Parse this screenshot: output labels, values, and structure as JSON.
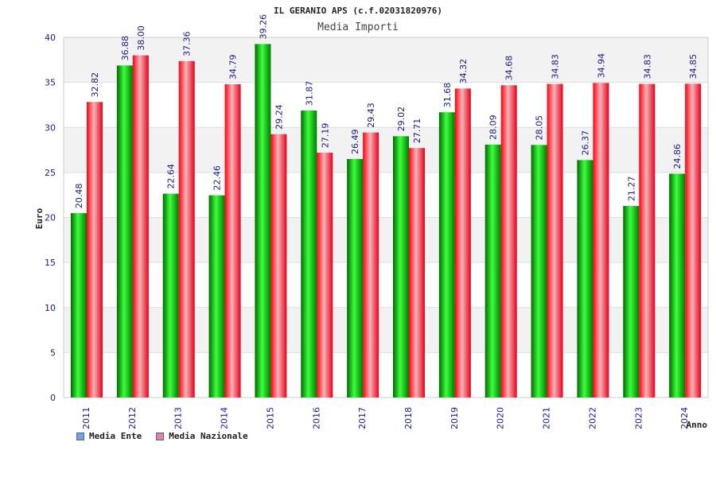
{
  "chart_data": {
    "type": "bar",
    "title": "IL GERANIO APS (c.f.02031820976)",
    "subtitle": "Media Importi",
    "xlabel": "Anno",
    "ylabel": "Euro",
    "ylim": [
      0,
      40
    ],
    "yticks": [
      0,
      5,
      10,
      15,
      20,
      25,
      30,
      35,
      40
    ],
    "categories": [
      "2011",
      "2012",
      "2013",
      "2014",
      "2015",
      "2016",
      "2017",
      "2018",
      "2019",
      "2020",
      "2021",
      "2022",
      "2023",
      "2024"
    ],
    "series": [
      {
        "name": "Media Ente",
        "color": "#00a000",
        "legend_color": "#6aa6e8",
        "values": [
          20.48,
          36.88,
          22.64,
          22.46,
          39.26,
          31.87,
          26.49,
          29.02,
          31.68,
          28.09,
          28.05,
          26.37,
          21.27,
          24.86
        ],
        "labels": [
          "20.48",
          "36.88",
          "22.64",
          "22.46",
          "39.26",
          "31.87",
          "26.49",
          "29.02",
          "31.68",
          "28.09",
          "28.05",
          "26.37",
          "21.27",
          "24.86"
        ]
      },
      {
        "name": "Media Nazionale",
        "color": "#e8101e",
        "legend_color": "#e080b0",
        "values": [
          32.82,
          38.0,
          37.36,
          34.79,
          29.24,
          27.19,
          29.43,
          27.71,
          34.32,
          34.68,
          34.83,
          34.94,
          34.83,
          34.85
        ],
        "labels": [
          "32.82",
          "38.00",
          "37.36",
          "34.79",
          "29.24",
          "27.19",
          "29.43",
          "27.71",
          "34.32",
          "34.68",
          "34.83",
          "34.94",
          "34.83",
          "34.85"
        ]
      }
    ]
  }
}
